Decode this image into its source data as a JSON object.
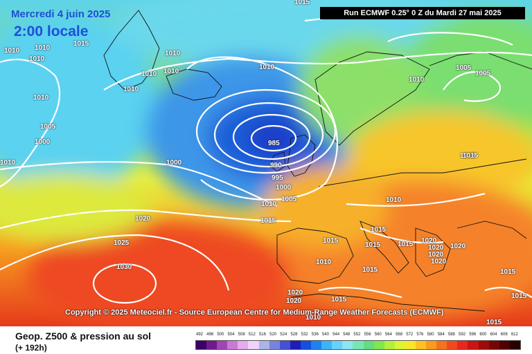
{
  "header": {
    "date": "Mercredi 4 juin 2025",
    "time": "2:00 locale",
    "run": "Run ECMWF 0.25° 0 Z du Mardi 27 mai 2025"
  },
  "copyright": "Copyright © 2025 Meteociel.fr - Source European Centre for Medium-Range Weather Forecasts (ECMWF)",
  "footer": {
    "parameter": "Geop. Z500 & pression au sol",
    "lead": "(+ 192h)"
  },
  "scale": {
    "labels": [
      "492",
      "496",
      "500",
      "504",
      "508",
      "512",
      "516",
      "520",
      "524",
      "528",
      "532",
      "536",
      "540",
      "544",
      "548",
      "552",
      "556",
      "560",
      "564",
      "568",
      "572",
      "576",
      "580",
      "584",
      "588",
      "592",
      "596",
      "600",
      "604",
      "608",
      "612"
    ],
    "colors": [
      "#3c0064",
      "#6e1a8c",
      "#a046b4",
      "#c87ad2",
      "#e6aaf0",
      "#f0d2fa",
      "#aab4e6",
      "#7884dc",
      "#4650d2",
      "#1e1eb4",
      "#1450dc",
      "#1e82f0",
      "#3cb4f5",
      "#64d2fa",
      "#8ce6f0",
      "#78e6b4",
      "#64dc82",
      "#82e650",
      "#b4f03c",
      "#dcf532",
      "#fae628",
      "#fac31e",
      "#fa9b1e",
      "#f5731e",
      "#f04b1e",
      "#e6281e",
      "#c81414",
      "#a00a0a",
      "#780505",
      "#500000",
      "#280000"
    ]
  },
  "isobars": [
    {
      "text": "1015"
    },
    {
      "text": "1010"
    },
    {
      "text": "1010"
    },
    {
      "text": "1015"
    },
    {
      "text": "1010"
    },
    {
      "text": "1010"
    },
    {
      "text": "1010"
    },
    {
      "text": "1010"
    },
    {
      "text": "1010"
    },
    {
      "text": "1010"
    },
    {
      "text": "1010"
    },
    {
      "text": "1005"
    },
    {
      "text": "1000"
    },
    {
      "text": "1005"
    },
    {
      "text": "1010"
    },
    {
      "text": "1010"
    },
    {
      "text": "1005"
    },
    {
      "text": "1000"
    },
    {
      "text": "985"
    },
    {
      "text": "990"
    },
    {
      "text": "995"
    },
    {
      "text": "1000"
    },
    {
      "text": "1005"
    },
    {
      "text": "1010"
    },
    {
      "text": "1015"
    },
    {
      "text": "1010"
    },
    {
      "text": "1020"
    },
    {
      "text": "1025"
    },
    {
      "text": "1030"
    },
    {
      "text": "1015"
    },
    {
      "text": "1015"
    },
    {
      "text": "1015"
    },
    {
      "text": "1015"
    },
    {
      "text": "1010"
    },
    {
      "text": "1020"
    },
    {
      "text": "1020"
    },
    {
      "text": "1020"
    },
    {
      "text": "1020"
    },
    {
      "text": "1020"
    },
    {
      "text": "1015"
    },
    {
      "text": "1020"
    },
    {
      "text": "1020"
    },
    {
      "text": "1015"
    },
    {
      "text": "1010"
    },
    {
      "text": "1015"
    },
    {
      "text": "1015"
    },
    {
      "text": "1015"
    },
    {
      "text": "1015"
    },
    {
      "text": "1015"
    }
  ]
}
